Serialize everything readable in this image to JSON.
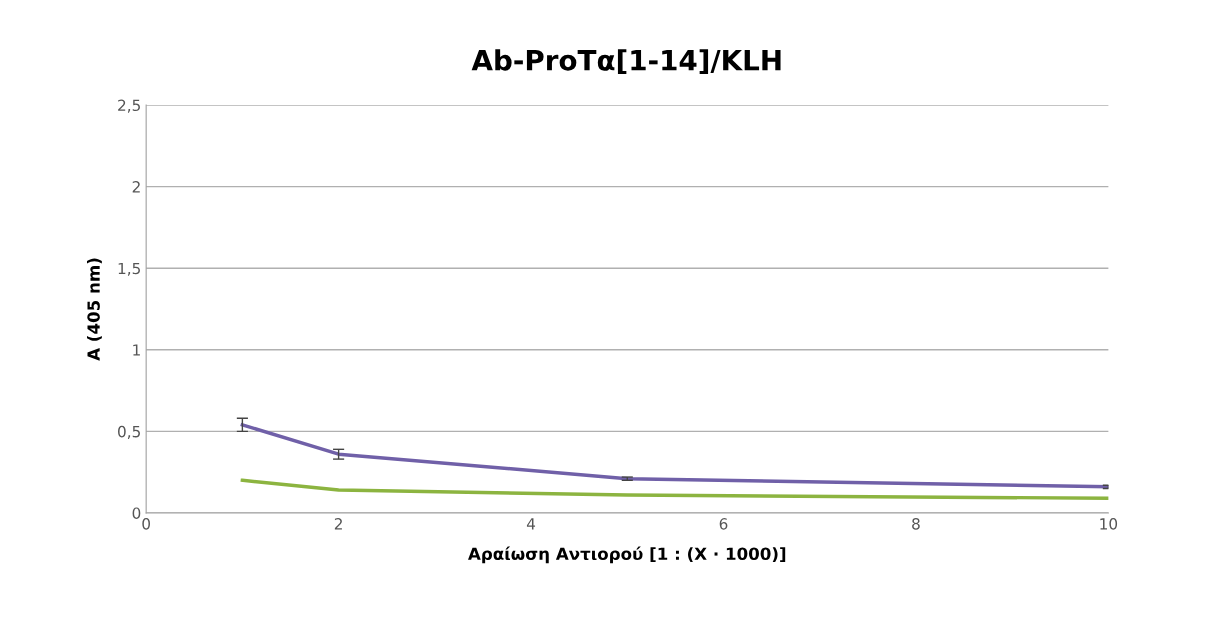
{
  "chart_data": {
    "type": "line",
    "title": "Ab-ProTα[1-14]/KLH",
    "xlabel": "Αραίωση Αντιορού [1 : (X · 1000)]",
    "ylabel": "A (405 nm)",
    "x": [
      1,
      2,
      5,
      10
    ],
    "series": [
      {
        "color": "#7060a8",
        "values": [
          0.54,
          0.36,
          0.21,
          0.16
        ],
        "errors": [
          0.04,
          0.03,
          0.01,
          0.01
        ]
      },
      {
        "color": "#8cb440",
        "values": [
          0.2,
          0.14,
          0.11,
          0.09
        ]
      }
    ],
    "xlim": [
      0,
      10
    ],
    "xticks": [
      0,
      2,
      4,
      6,
      8,
      10
    ],
    "ylim": [
      0,
      2.5
    ],
    "yticks": [
      0,
      {
        "value": 0.5,
        "label": "0,5"
      },
      1,
      {
        "value": 1.5,
        "label": "1,5"
      },
      2,
      {
        "value": 2.5,
        "label": "2,5"
      }
    ],
    "grid": "y",
    "line_style": "solid"
  }
}
